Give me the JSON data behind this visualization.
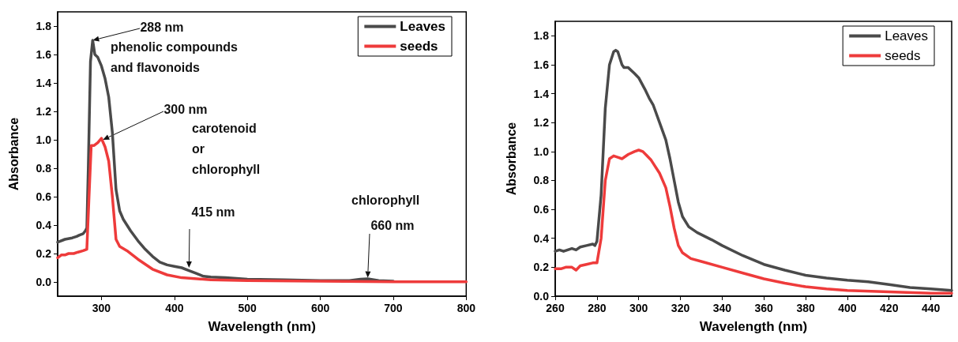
{
  "chart_data": [
    {
      "type": "line",
      "xlabel": "Wavelength (nm)",
      "ylabel": "Absorbance",
      "legend": "top right",
      "grid": false,
      "marker": "none",
      "line_style": "solid",
      "xlim": [
        240,
        800
      ],
      "xticks": [
        300,
        400,
        500,
        600,
        700,
        800
      ],
      "ylim": [
        -0.1,
        1.9
      ],
      "yticks": [
        {
          "value": 0,
          "label": "0.0"
        },
        {
          "value": 0.2,
          "label": "0.2"
        },
        {
          "value": 0.4,
          "label": "0.4"
        },
        {
          "value": 0.6,
          "label": "0.6"
        },
        {
          "value": 0.8,
          "label": "0.8"
        },
        {
          "value": 1,
          "label": "1.0"
        },
        {
          "value": 1.2,
          "label": "1.2"
        },
        {
          "value": 1.4,
          "label": "1.4"
        },
        {
          "value": 1.6,
          "label": "1.6"
        },
        {
          "value": 1.8,
          "label": "1.8"
        }
      ],
      "annotations": [
        {
          "text": "288 nm",
          "x": 288,
          "y": 1.7
        },
        "phenolic compounds\nand flavonoids",
        {
          "text": "300 nm",
          "x": 302,
          "y": 1.0
        },
        "carotenoid\nor\nchlorophyll",
        {
          "text": "415 nm",
          "x": 420,
          "y": 0.1
        },
        "chlorophyll",
        {
          "text": "660 nm",
          "x": 665,
          "y": 0.03
        }
      ],
      "series": [
        {
          "name": "Leaves",
          "color": "#4a4a4a",
          "x": [
            240,
            250,
            260,
            266,
            270,
            275,
            278,
            280,
            282,
            285,
            288,
            291,
            295,
            300,
            305,
            310,
            315,
            320,
            325,
            330,
            340,
            350,
            360,
            370,
            380,
            390,
            400,
            410,
            420,
            430,
            440,
            450,
            470,
            500,
            550,
            600,
            640,
            655,
            665,
            680,
            700
          ],
          "values": [
            0.28,
            0.3,
            0.31,
            0.32,
            0.33,
            0.34,
            0.36,
            0.38,
            0.8,
            1.55,
            1.7,
            1.6,
            1.58,
            1.52,
            1.43,
            1.3,
            1.05,
            0.65,
            0.5,
            0.44,
            0.36,
            0.29,
            0.23,
            0.18,
            0.14,
            0.12,
            0.11,
            0.1,
            0.08,
            0.06,
            0.04,
            0.035,
            0.03,
            0.02,
            0.015,
            0.01,
            0.01,
            0.02,
            0.022,
            0.01,
            0.005
          ]
        },
        {
          "name": "seeds",
          "color": "#ee3b3b",
          "x": [
            240,
            245,
            250,
            255,
            262,
            268,
            275,
            280,
            283,
            286,
            290,
            295,
            300,
            305,
            310,
            315,
            320,
            325,
            335,
            350,
            370,
            390,
            410,
            450,
            500,
            600,
            700,
            800
          ],
          "values": [
            0.17,
            0.19,
            0.19,
            0.2,
            0.2,
            0.21,
            0.22,
            0.23,
            0.6,
            0.96,
            0.96,
            0.98,
            1.01,
            0.95,
            0.85,
            0.6,
            0.3,
            0.25,
            0.22,
            0.16,
            0.09,
            0.05,
            0.03,
            0.015,
            0.01,
            0.005,
            0.002,
            0.001
          ]
        }
      ]
    },
    {
      "type": "line",
      "xlabel": "Wavelength (nm)",
      "ylabel": "Absorbance",
      "legend": "top right",
      "grid": false,
      "marker": "none",
      "line_style": "solid",
      "xlim": [
        260,
        450
      ],
      "xticks": [
        260,
        280,
        300,
        320,
        340,
        360,
        380,
        400,
        420,
        440
      ],
      "ylim": [
        0,
        1.9
      ],
      "yticks": [
        {
          "value": 0,
          "label": "0.0"
        },
        {
          "value": 0.2,
          "label": "0.2"
        },
        {
          "value": 0.4,
          "label": "0.4"
        },
        {
          "value": 0.6,
          "label": "0.6"
        },
        {
          "value": 0.8,
          "label": "0.8"
        },
        {
          "value": 1,
          "label": "1.0"
        },
        {
          "value": 1.2,
          "label": "1.2"
        },
        {
          "value": 1.4,
          "label": "1.4"
        },
        {
          "value": 1.6,
          "label": "1.6"
        },
        {
          "value": 1.8,
          "label": "1.8"
        }
      ],
      "series": [
        {
          "name": "Leaves",
          "color": "#4a4a4a",
          "x": [
            260,
            262,
            264,
            266,
            268,
            270,
            272,
            275,
            278,
            279,
            280,
            282,
            284,
            286,
            288,
            289,
            290,
            292,
            293,
            295,
            298,
            300,
            303,
            305,
            307,
            310,
            313,
            315,
            317,
            319,
            321,
            324,
            328,
            335,
            340,
            350,
            360,
            370,
            380,
            390,
            400,
            410,
            420,
            430,
            440,
            450
          ],
          "values": [
            0.31,
            0.32,
            0.31,
            0.32,
            0.33,
            0.32,
            0.34,
            0.35,
            0.36,
            0.35,
            0.38,
            0.7,
            1.3,
            1.6,
            1.69,
            1.7,
            1.69,
            1.6,
            1.58,
            1.58,
            1.54,
            1.51,
            1.43,
            1.37,
            1.32,
            1.2,
            1.08,
            0.95,
            0.8,
            0.65,
            0.55,
            0.48,
            0.44,
            0.39,
            0.35,
            0.28,
            0.22,
            0.18,
            0.145,
            0.125,
            0.11,
            0.1,
            0.08,
            0.06,
            0.05,
            0.04
          ]
        },
        {
          "name": "seeds",
          "color": "#ee3b3b",
          "x": [
            260,
            263,
            265,
            268,
            270,
            272,
            275,
            278,
            280,
            282,
            284,
            286,
            288,
            290,
            292,
            295,
            298,
            300,
            302,
            304,
            306,
            310,
            313,
            315,
            317,
            319,
            321,
            325,
            330,
            340,
            350,
            360,
            370,
            380,
            390,
            400,
            420,
            440,
            450
          ],
          "values": [
            0.19,
            0.19,
            0.2,
            0.2,
            0.18,
            0.21,
            0.22,
            0.23,
            0.23,
            0.4,
            0.8,
            0.95,
            0.97,
            0.96,
            0.95,
            0.98,
            1.0,
            1.01,
            1.0,
            0.97,
            0.94,
            0.85,
            0.75,
            0.62,
            0.47,
            0.35,
            0.3,
            0.26,
            0.24,
            0.2,
            0.16,
            0.12,
            0.09,
            0.065,
            0.05,
            0.04,
            0.03,
            0.02,
            0.02
          ]
        }
      ]
    }
  ]
}
